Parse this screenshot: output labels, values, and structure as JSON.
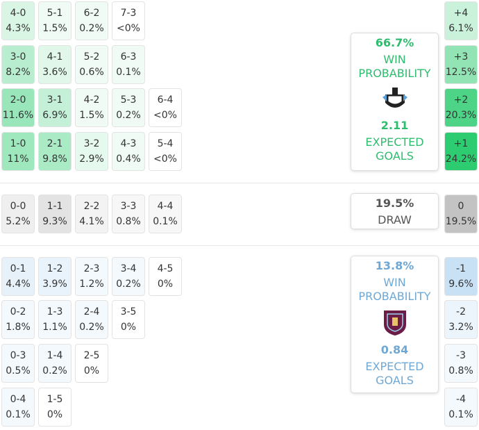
{
  "home": {
    "rows": [
      [
        [
          "4-0",
          "4.3%"
        ],
        [
          "5-1",
          "1.5%"
        ],
        [
          "6-2",
          "0.2%"
        ],
        [
          "7-3",
          "<0%"
        ]
      ],
      [
        [
          "3-0",
          "8.2%"
        ],
        [
          "4-1",
          "3.6%"
        ],
        [
          "5-2",
          "0.6%"
        ],
        [
          "6-3",
          "0.1%"
        ]
      ],
      [
        [
          "2-0",
          "11.6%"
        ],
        [
          "3-1",
          "6.9%"
        ],
        [
          "4-2",
          "1.5%"
        ],
        [
          "5-3",
          "0.2%"
        ],
        [
          "6-4",
          "<0%"
        ]
      ],
      [
        [
          "1-0",
          "11%"
        ],
        [
          "2-1",
          "9.8%"
        ],
        [
          "3-2",
          "2.9%"
        ],
        [
          "4-3",
          "0.4%"
        ],
        [
          "5-4",
          "<0%"
        ]
      ]
    ],
    "margins": [
      [
        "+4",
        "6.1%"
      ],
      [
        "+3",
        "12.5%"
      ],
      [
        "+2",
        "20.3%"
      ],
      [
        "+1",
        "24.2%"
      ]
    ],
    "card": {
      "win": "66.7%",
      "win_label": "WIN PROBABILITY",
      "xg": "2.11",
      "xg_label": "EXPECTED GOALS"
    }
  },
  "draw": {
    "rows": [
      [
        [
          "0-0",
          "5.2%"
        ],
        [
          "1-1",
          "9.3%"
        ],
        [
          "2-2",
          "4.1%"
        ],
        [
          "3-3",
          "0.8%"
        ],
        [
          "4-4",
          "0.1%"
        ]
      ]
    ],
    "margins": [
      [
        "0",
        "19.5%"
      ]
    ],
    "card": {
      "win": "19.5%",
      "win_label": "DRAW"
    }
  },
  "away": {
    "rows": [
      [
        [
          "0-1",
          "4.4%"
        ],
        [
          "1-2",
          "3.9%"
        ],
        [
          "2-3",
          "1.2%"
        ],
        [
          "3-4",
          "0.2%"
        ],
        [
          "4-5",
          "0%"
        ]
      ],
      [
        [
          "0-2",
          "1.8%"
        ],
        [
          "1-3",
          "1.1%"
        ],
        [
          "2-4",
          "0.2%"
        ],
        [
          "3-5",
          "0%"
        ]
      ],
      [
        [
          "0-3",
          "0.5%"
        ],
        [
          "1-4",
          "0.2%"
        ],
        [
          "2-5",
          "0%"
        ]
      ],
      [
        [
          "0-4",
          "0.1%"
        ],
        [
          "1-5",
          "0%"
        ]
      ]
    ],
    "margins": [
      [
        "-1",
        "9.6%"
      ],
      [
        "-2",
        "3.2%"
      ],
      [
        "-3",
        "0.8%"
      ],
      [
        "-4",
        "0.1%"
      ]
    ],
    "card": {
      "win": "13.8%",
      "win_label": "WIN PROBABILITY",
      "xg": "0.84",
      "xg_label": "EXPECTED GOALS"
    }
  }
}
